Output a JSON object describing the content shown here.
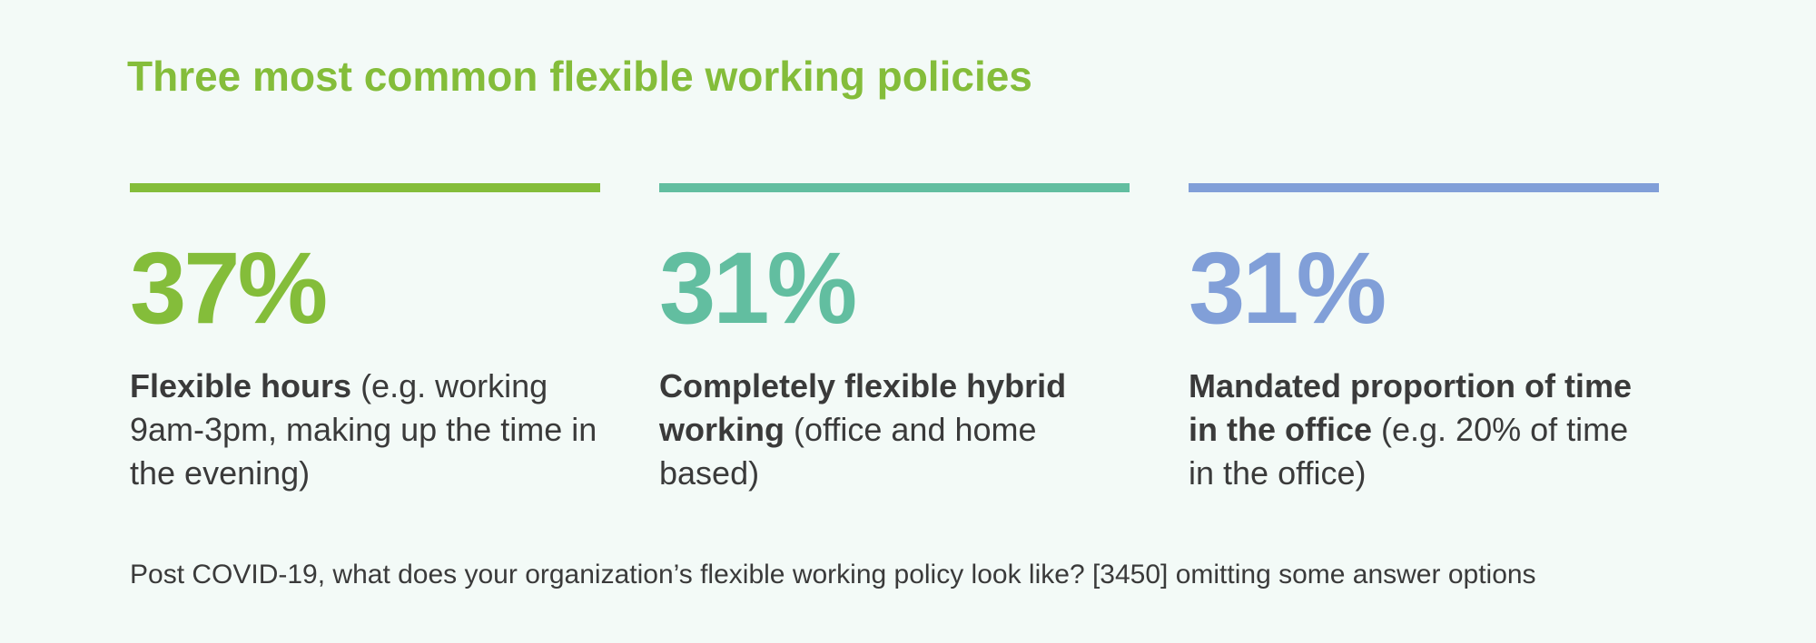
{
  "chart_data": {
    "type": "table",
    "title": "Three most common flexible working policies",
    "categories": [
      "Flexible hours",
      "Completely flexible hybrid working",
      "Mandated proportion of time in the office"
    ],
    "values": [
      37,
      31,
      31
    ],
    "unit": "%",
    "stats": [
      {
        "value": "37%",
        "bold": "Flexible hours",
        "rest": " (e.g. working 9am-3pm, making up the time in the evening)",
        "color": "#84bd3a"
      },
      {
        "value": "31%",
        "bold": "Completely flexible hybrid working",
        "rest": " (office and home based)",
        "color": "#62bea0"
      },
      {
        "value": "31%",
        "bold": "Mandated proportion of time in the office",
        "rest": " (e.g. 20% of time in the office)",
        "color": "#819fd8"
      }
    ],
    "footnote": "Post COVID-19, what does your organization’s flexible working policy look like? [3450] omitting some answer options"
  },
  "colors": {
    "title": "#84bd3a",
    "text": "#3a3a3a",
    "background": "#f3faf7"
  }
}
